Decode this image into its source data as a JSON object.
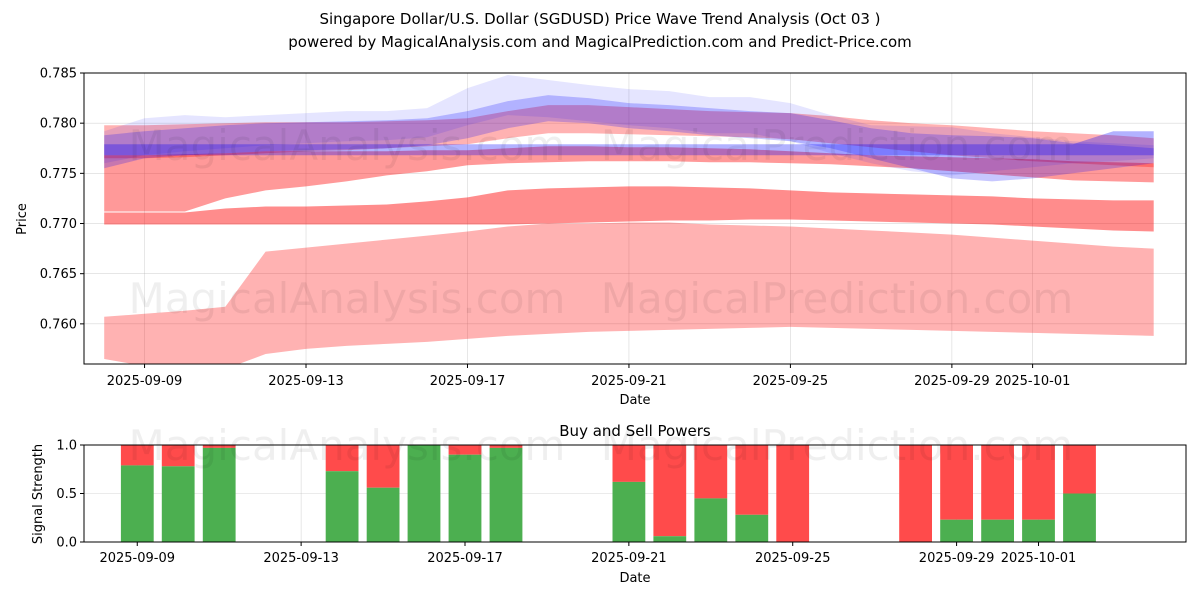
{
  "title_line1": "Singapore Dollar/U.S. Dollar (SGDUSD) Price Wave Trend Analysis (Oct 03 )",
  "title_line2": "powered by MagicalAnalysis.com and MagicalPrediction.com and Predict-Price.com",
  "watermarks": [
    "MagicalAnalysis.com",
    "MagicalPrediction.com"
  ],
  "colors": {
    "red_band": "#ff0000",
    "blue_band": "#0000ff",
    "buy": "#4caf50",
    "sell": "#ff4b4b"
  },
  "chart_data": [
    {
      "type": "area",
      "xlabel": "Date",
      "ylabel": "Price",
      "ylim": [
        0.756,
        0.785
      ],
      "yticks": [
        0.76,
        0.765,
        0.77,
        0.775,
        0.78,
        0.785
      ],
      "ytick_labels": [
        "0.760",
        "0.765",
        "0.770",
        "0.775",
        "0.780",
        "0.785"
      ],
      "xticks": [
        "2025-09-09",
        "2025-09-13",
        "2025-09-17",
        "2025-09-21",
        "2025-09-25",
        "2025-09-29",
        "2025-10-01"
      ],
      "grid": true,
      "x": [
        "2025-09-08",
        "2025-09-09",
        "2025-09-10",
        "2025-09-11",
        "2025-09-12",
        "2025-09-13",
        "2025-09-14",
        "2025-09-15",
        "2025-09-16",
        "2025-09-17",
        "2025-09-18",
        "2025-09-19",
        "2025-09-20",
        "2025-09-21",
        "2025-09-22",
        "2025-09-23",
        "2025-09-24",
        "2025-09-25",
        "2025-09-26",
        "2025-09-27",
        "2025-09-28",
        "2025-09-29",
        "2025-09-30",
        "2025-10-01",
        "2025-10-02",
        "2025-10-03",
        "2025-10-04"
      ],
      "series": [
        {
          "color": "red",
          "upper": [
            0.7607,
            0.761,
            0.7613,
            0.7617,
            0.7672,
            0.7676,
            0.768,
            0.7684,
            0.7688,
            0.7692,
            0.7697,
            0.77,
            0.77,
            0.7701,
            0.7701,
            0.7699,
            0.7698,
            0.7697,
            0.7695,
            0.7693,
            0.7691,
            0.7689,
            0.7686,
            0.7683,
            0.768,
            0.7677,
            0.7675
          ],
          "lower": [
            0.7565,
            0.7558,
            0.755,
            0.7555,
            0.757,
            0.7575,
            0.7578,
            0.758,
            0.7582,
            0.7585,
            0.7588,
            0.759,
            0.7592,
            0.7593,
            0.7594,
            0.7595,
            0.7596,
            0.7597,
            0.7596,
            0.7595,
            0.7594,
            0.7593,
            0.7592,
            0.7591,
            0.759,
            0.7589,
            0.7588
          ]
        },
        {
          "color": "red",
          "upper": [
            0.7711,
            0.7711,
            0.7711,
            0.7715,
            0.7717,
            0.7717,
            0.7718,
            0.7719,
            0.7722,
            0.7726,
            0.7733,
            0.7735,
            0.7736,
            0.7737,
            0.7737,
            0.7736,
            0.7735,
            0.7733,
            0.7731,
            0.773,
            0.7729,
            0.7728,
            0.7727,
            0.7725,
            0.7724,
            0.7723,
            0.7723
          ],
          "lower": [
            0.7699,
            0.7699,
            0.7699,
            0.7699,
            0.7699,
            0.7699,
            0.7699,
            0.7699,
            0.7699,
            0.7699,
            0.7699,
            0.77,
            0.7701,
            0.7702,
            0.7703,
            0.7703,
            0.7704,
            0.7704,
            0.7703,
            0.7702,
            0.7701,
            0.77,
            0.7699,
            0.7697,
            0.7695,
            0.7693,
            0.7692
          ]
        },
        {
          "color": "red",
          "upper": [
            0.7768,
            0.7768,
            0.7769,
            0.777,
            0.7772,
            0.7772,
            0.7772,
            0.7772,
            0.7773,
            0.7773,
            0.7775,
            0.7777,
            0.7777,
            0.7776,
            0.7776,
            0.7775,
            0.7774,
            0.7772,
            0.777,
            0.7768,
            0.7767,
            0.7766,
            0.7765,
            0.7764,
            0.7762,
            0.7761,
            0.776
          ],
          "lower": [
            0.7712,
            0.7712,
            0.7712,
            0.7725,
            0.7733,
            0.7737,
            0.7742,
            0.7748,
            0.7752,
            0.7758,
            0.776,
            0.7761,
            0.7762,
            0.7762,
            0.7762,
            0.7761,
            0.7761,
            0.776,
            0.7759,
            0.7757,
            0.7755,
            0.7752,
            0.7749,
            0.7746,
            0.7743,
            0.7742,
            0.7741
          ]
        },
        {
          "color": "red",
          "upper": [
            0.7798,
            0.7798,
            0.7799,
            0.78,
            0.7801,
            0.7801,
            0.7801,
            0.7802,
            0.7803,
            0.7805,
            0.7812,
            0.7818,
            0.7818,
            0.7816,
            0.7814,
            0.7812,
            0.7811,
            0.781,
            0.7807,
            0.7803,
            0.78,
            0.7798,
            0.7795,
            0.7792,
            0.779,
            0.7788,
            0.7785
          ],
          "lower": [
            0.7765,
            0.7765,
            0.7766,
            0.7768,
            0.777,
            0.7772,
            0.7773,
            0.7775,
            0.7777,
            0.7779,
            0.7785,
            0.779,
            0.779,
            0.7789,
            0.7788,
            0.7787,
            0.7786,
            0.7784,
            0.778,
            0.7776,
            0.7772,
            0.7768,
            0.7765,
            0.7762,
            0.776,
            0.7758,
            0.7756
          ]
        },
        {
          "color": "blue",
          "upper": [
            0.7779,
            0.7779,
            0.7779,
            0.7779,
            0.7779,
            0.7779,
            0.7779,
            0.7779,
            0.7779,
            0.7779,
            0.7779,
            0.7779,
            0.7779,
            0.7779,
            0.7779,
            0.7779,
            0.7779,
            0.7779,
            0.7779,
            0.7779,
            0.7779,
            0.7779,
            0.7779,
            0.7779,
            0.7779,
            0.7792,
            0.7792
          ],
          "lower": [
            0.7768,
            0.7768,
            0.7768,
            0.7768,
            0.7768,
            0.7768,
            0.7768,
            0.7768,
            0.7768,
            0.7768,
            0.7768,
            0.7768,
            0.7768,
            0.7768,
            0.7768,
            0.7768,
            0.7768,
            0.7768,
            0.7768,
            0.7768,
            0.7768,
            0.7768,
            0.7768,
            0.7768,
            0.7768,
            0.7768,
            0.7768
          ]
        },
        {
          "color": "blue",
          "upper": [
            0.7788,
            0.7792,
            0.7795,
            0.7798,
            0.78,
            0.7801,
            0.7802,
            0.7803,
            0.7805,
            0.7812,
            0.7822,
            0.7828,
            0.7825,
            0.782,
            0.7818,
            0.7815,
            0.7812,
            0.781,
            0.7803,
            0.7795,
            0.779,
            0.7788,
            0.7787,
            0.7785,
            0.778,
            0.7778,
            0.7775
          ],
          "lower": [
            0.7755,
            0.7765,
            0.7768,
            0.777,
            0.7772,
            0.7773,
            0.7774,
            0.7775,
            0.7778,
            0.7785,
            0.7795,
            0.7802,
            0.78,
            0.7795,
            0.7792,
            0.7788,
            0.7785,
            0.7782,
            0.7775,
            0.7765,
            0.7755,
            0.7745,
            0.7742,
            0.7745,
            0.775,
            0.7755,
            0.776
          ]
        },
        {
          "color": "blue",
          "upper": [
            0.7792,
            0.7805,
            0.7808,
            0.7806,
            0.7808,
            0.781,
            0.7812,
            0.7812,
            0.7815,
            0.7835,
            0.7848,
            0.7843,
            0.7838,
            0.7834,
            0.7832,
            0.7826,
            0.7826,
            0.782,
            0.7808,
            0.7798,
            0.7797,
            0.7796,
            0.779,
            0.7786,
            0.7782,
            0.778,
            0.7778
          ],
          "lower": [
            0.776,
            0.7768,
            0.7772,
            0.7775,
            0.7778,
            0.778,
            0.7782,
            0.7783,
            0.7786,
            0.7798,
            0.7808,
            0.7806,
            0.7802,
            0.7798,
            0.7795,
            0.779,
            0.779,
            0.7782,
            0.777,
            0.776,
            0.7752,
            0.7748,
            0.7752,
            0.7756,
            0.776,
            0.7762,
            0.7765
          ]
        }
      ]
    },
    {
      "type": "bar",
      "title": "Buy and Sell Powers",
      "xlabel": "Date",
      "ylabel": "Signal Strength",
      "ylim": [
        0,
        1.0
      ],
      "yticks": [
        0.0,
        0.5,
        1.0
      ],
      "ytick_labels": [
        "0.0",
        "0.5",
        "1.0"
      ],
      "xticks": [
        "2025-09-09",
        "2025-09-13",
        "2025-09-17",
        "2025-09-21",
        "2025-09-25",
        "2025-09-29",
        "2025-10-01"
      ],
      "grid": true,
      "categories": [
        "2025-09-09",
        "2025-09-10",
        "2025-09-11",
        "2025-09-14",
        "2025-09-15",
        "2025-09-16",
        "2025-09-17",
        "2025-09-18",
        "2025-09-21",
        "2025-09-22",
        "2025-09-23",
        "2025-09-24",
        "2025-09-25",
        "2025-09-28",
        "2025-09-29",
        "2025-09-30",
        "2025-10-01",
        "2025-10-02"
      ],
      "buy": [
        0.79,
        0.78,
        0.97,
        0.73,
        0.56,
        1.0,
        0.9,
        0.97,
        0.62,
        0.06,
        0.45,
        0.28,
        0.0,
        0.0,
        0.23,
        0.23,
        0.23,
        0.5
      ],
      "sell_total": 1.0
    }
  ]
}
